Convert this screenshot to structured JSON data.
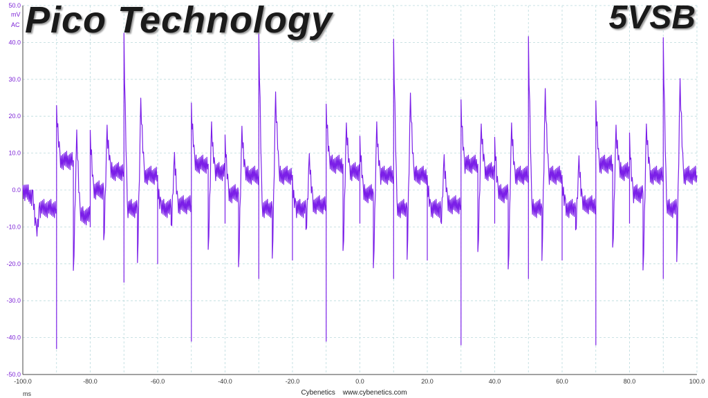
{
  "overlay": {
    "brand": "Pico Technology",
    "rail": "5VSB"
  },
  "footer": {
    "brand": "Cybenetics",
    "url": "www.cybenetics.com"
  },
  "colors": {
    "trace": "#7b1fe8",
    "grid": "#b9d9dc",
    "axis_labels": "#7a1fd6"
  },
  "chart_data": {
    "type": "line",
    "title": "",
    "xlabel": "ms",
    "ylabel": [
      "mV",
      "AC"
    ],
    "xlim": [
      -100,
      100
    ],
    "ylim": [
      -50,
      50
    ],
    "x_ticks": [
      "-100.0",
      "-80.0",
      "-60.0",
      "-40.0",
      "-20.0",
      "0.0",
      "20.0",
      "40.0",
      "60.0",
      "80.0",
      "100.0"
    ],
    "y_ticks": [
      "50.0",
      "40.0",
      "30.0",
      "20.0",
      "10.0",
      "0.0",
      "-10.0",
      "-20.0",
      "-30.0",
      "-40.0",
      "-50.0"
    ],
    "grid": true,
    "series": [
      {
        "x": [
          -100,
          -97,
          -96,
          -95,
          -90,
          -90,
          -90,
          -89,
          -85,
          -85,
          -84,
          -83,
          -80,
          -80,
          -80,
          -79,
          -76,
          -76,
          -75,
          -74,
          -70,
          -70,
          -70,
          -69,
          -66,
          -66,
          -65,
          -64,
          -60,
          -60,
          -60,
          -59,
          -56,
          -56,
          -55,
          -54,
          -50,
          -50,
          -50,
          -49,
          -45,
          -45,
          -44,
          -43,
          -40,
          -40,
          -40,
          -39,
          -36,
          -36,
          -35,
          -34,
          -30,
          -30,
          -30,
          -29,
          -26,
          -26,
          -25,
          -24,
          -20,
          -20,
          -20,
          -19,
          -16,
          -16,
          -15,
          -14,
          -10,
          -10,
          -10,
          -9,
          -5,
          -5,
          -4,
          -3,
          0,
          0,
          0,
          1,
          4,
          4,
          5,
          6,
          10,
          10,
          10,
          11,
          14,
          14,
          15,
          16,
          20,
          20,
          20,
          21,
          24,
          24,
          25,
          26,
          30,
          30,
          30,
          31,
          35,
          35,
          36,
          37,
          40,
          40,
          40,
          41,
          44,
          44,
          45,
          46,
          50,
          50,
          50,
          51,
          54,
          54,
          55,
          56,
          60,
          60,
          60,
          61,
          64,
          64,
          65,
          66,
          70,
          70,
          70,
          71,
          75,
          75,
          76,
          77,
          80,
          80,
          80,
          81,
          84,
          84,
          85,
          86,
          90,
          90,
          90,
          91,
          94,
          94,
          95,
          96,
          100
        ],
        "y": [
          0,
          -2,
          -12,
          -5,
          -5,
          -43,
          21,
          8,
          8,
          -24,
          15,
          -7,
          -7,
          -10,
          14,
          0,
          0,
          -16,
          16,
          5,
          5,
          -25,
          40,
          -5,
          -5,
          -21,
          23,
          4,
          4,
          -20,
          1,
          -5,
          -5,
          -11,
          8,
          -4,
          -4,
          -41,
          22,
          7,
          7,
          -18,
          16,
          5,
          5,
          -9,
          13,
          -1,
          -1,
          -23,
          16,
          4,
          4,
          -24,
          41,
          -5,
          -5,
          -21,
          25,
          4,
          4,
          -19,
          1,
          -5,
          -5,
          -12,
          8,
          -4,
          -4,
          -41,
          22,
          7,
          7,
          -18,
          16,
          5,
          5,
          -9,
          13,
          -1,
          -1,
          -23,
          16,
          4,
          4,
          -24,
          39,
          -5,
          -5,
          -21,
          25,
          4,
          4,
          -19,
          1,
          -5,
          -5,
          -11,
          8,
          -4,
          -4,
          -42,
          22,
          7,
          7,
          -18,
          16,
          5,
          5,
          -9,
          13,
          -1,
          -1,
          -23,
          16,
          4,
          4,
          -24,
          40,
          -5,
          -5,
          -21,
          25,
          4,
          4,
          -19,
          1,
          -5,
          -5,
          -13,
          8,
          -4,
          -4,
          -42,
          22,
          7,
          7,
          -18,
          16,
          5,
          5,
          -9,
          13,
          -1,
          -1,
          -23,
          16,
          4,
          4,
          -24,
          40,
          -5,
          -5,
          -21,
          28,
          4,
          4
        ]
      }
    ]
  }
}
